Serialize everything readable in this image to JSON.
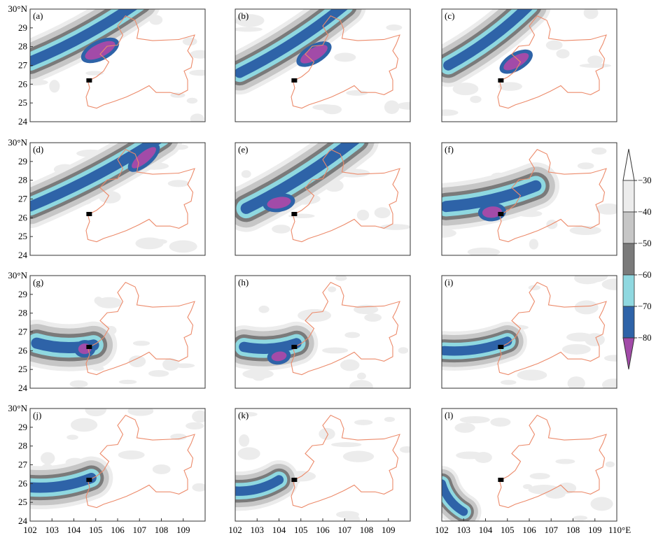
{
  "chart_data": {
    "type": "heatmap",
    "x_ticks": [
      "102",
      "103",
      "104",
      "105",
      "106",
      "107",
      "108",
      "109",
      "110°E"
    ],
    "y_ticks": [
      "24",
      "25",
      "26",
      "27",
      "28",
      "29",
      "30°N"
    ],
    "xlim": [
      102,
      110
    ],
    "ylim": [
      24,
      30
    ],
    "marker": {
      "lon": 104.7,
      "lat": 26.2
    },
    "colorbar": {
      "ticks": [
        "−30",
        "−40",
        "−50",
        "−60",
        "−70",
        "−80"
      ],
      "levels": [
        -30,
        -40,
        -50,
        -60,
        -70,
        -80
      ],
      "colors": [
        "#ffffff",
        "#ececec",
        "#c6c6c6",
        "#7a7a7a",
        "#8fd8e0",
        "#2e63a8",
        "#a24ba8"
      ]
    },
    "panels": [
      {
        "label": "(a)",
        "band": {
          "a": [
            102.0,
            27.2
          ],
          "b": [
            107.0,
            30.4
          ],
          "w": 0.55
        },
        "core": {
          "c": [
            105.2,
            27.8
          ],
          "w": 1.5,
          "h": 0.35,
          "rot": -26
        }
      },
      {
        "label": "(b)",
        "band": {
          "a": [
            102.2,
            26.6
          ],
          "b": [
            107.0,
            30.2
          ],
          "w": 0.55
        },
        "core": {
          "c": [
            105.6,
            27.6
          ],
          "w": 1.4,
          "h": 0.32,
          "rot": -30
        }
      },
      {
        "label": "(c)",
        "band": {
          "a": [
            102.3,
            27.0
          ],
          "b": [
            106.0,
            30.2
          ],
          "w": 0.55
        },
        "core": {
          "c": [
            105.4,
            27.2
          ],
          "w": 1.3,
          "h": 0.3,
          "rot": -30
        }
      },
      {
        "label": "(d)",
        "band": {
          "a": [
            102.0,
            26.6
          ],
          "b": [
            108.0,
            30.3
          ],
          "w": 0.55
        },
        "core": {
          "c": [
            107.2,
            29.2
          ],
          "w": 1.4,
          "h": 0.28,
          "rot": -40
        }
      },
      {
        "label": "(e)",
        "band": {
          "a": [
            102.5,
            26.5
          ],
          "b": [
            107.5,
            30.2
          ],
          "w": 0.6
        },
        "core": {
          "c": [
            104.0,
            26.8
          ],
          "w": 1.1,
          "h": 0.3,
          "rot": -10
        }
      },
      {
        "label": "(f)",
        "band": {
          "a": [
            102.2,
            26.6
          ],
          "b": [
            106.3,
            27.7
          ],
          "w": 0.6
        },
        "core": {
          "c": [
            104.3,
            26.3
          ],
          "w": 0.9,
          "h": 0.3,
          "rot": -5
        }
      },
      {
        "label": "(g)",
        "band": {
          "a": [
            102.3,
            26.4
          ],
          "b": [
            104.9,
            26.3
          ],
          "w": 0.6
        },
        "core": {
          "c": [
            104.5,
            26.1
          ],
          "w": 0.6,
          "h": 0.28,
          "rot": -5
        }
      },
      {
        "label": "(h)",
        "band": {
          "a": [
            102.4,
            26.2
          ],
          "b": [
            104.8,
            26.4
          ],
          "w": 0.55
        },
        "core": {
          "c": [
            104.0,
            25.7
          ],
          "w": 0.7,
          "h": 0.25,
          "rot": -10
        }
      },
      {
        "label": "(i)",
        "band": {
          "a": [
            102.1,
            26.0
          ],
          "b": [
            105.0,
            26.5
          ],
          "w": 0.5
        },
        "core": null
      },
      {
        "label": "(j)",
        "band": {
          "a": [
            102.0,
            25.8
          ],
          "b": [
            104.8,
            26.3
          ],
          "w": 0.55
        },
        "core": null
      },
      {
        "label": "(k)",
        "band": {
          "a": [
            102.0,
            25.6
          ],
          "b": [
            104.0,
            26.2
          ],
          "w": 0.5
        },
        "core": null
      },
      {
        "label": "(l)",
        "band": {
          "a": [
            102.0,
            26.0
          ],
          "b": [
            103.0,
            24.5
          ],
          "w": 0.45
        },
        "core": null
      }
    ]
  }
}
